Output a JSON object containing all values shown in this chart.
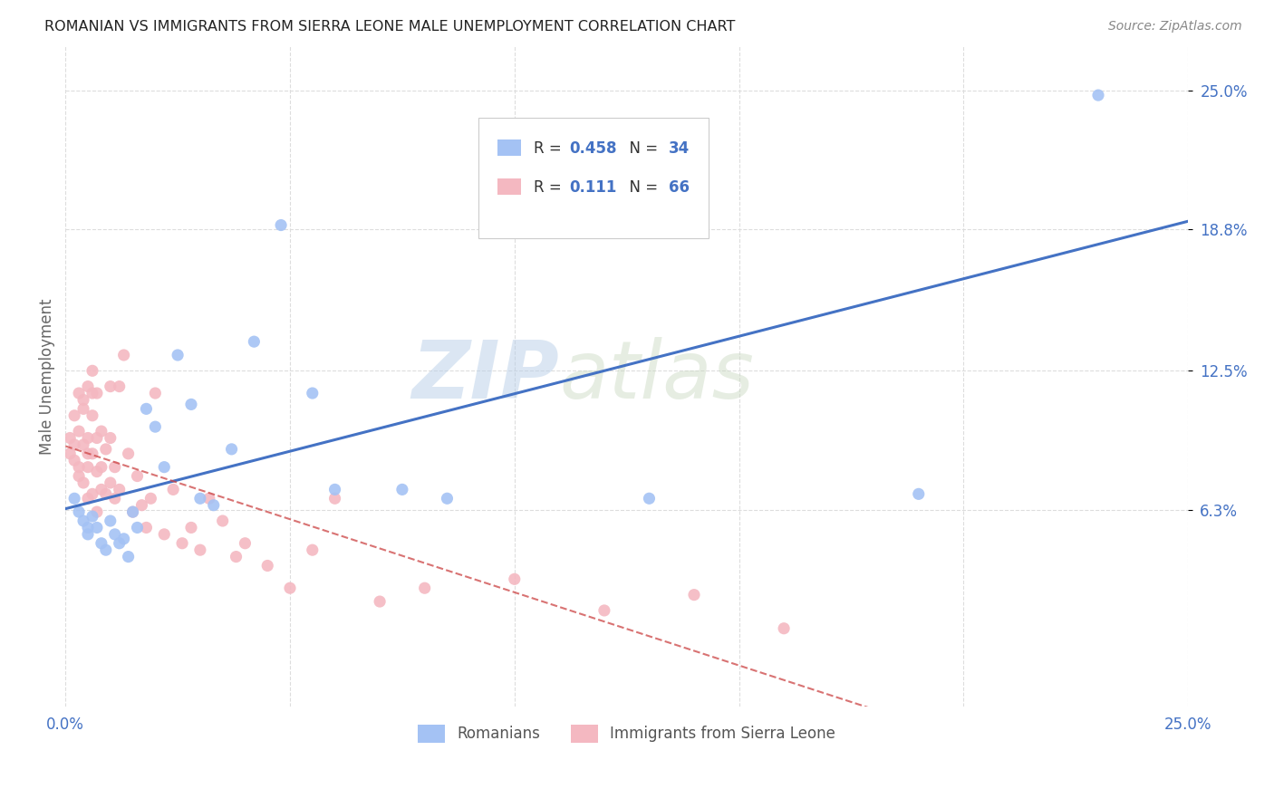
{
  "title": "ROMANIAN VS IMMIGRANTS FROM SIERRA LEONE MALE UNEMPLOYMENT CORRELATION CHART",
  "source": "Source: ZipAtlas.com",
  "ylabel": "Male Unemployment",
  "xlim": [
    0.0,
    0.25
  ],
  "ylim": [
    -0.025,
    0.27
  ],
  "romanian_color": "#a4c2f4",
  "sierra_leone_color": "#f4b8c1",
  "romanian_trend_color": "#4472c4",
  "sierra_leone_trend_color": "#cc4444",
  "watermark_text": "ZIP",
  "watermark_text2": "atlas",
  "legend_r_romanian": "0.458",
  "legend_n_romanian": "34",
  "legend_r_sierra": "0.111",
  "legend_n_sierra": "66",
  "romanians_x": [
    0.002,
    0.003,
    0.004,
    0.005,
    0.005,
    0.006,
    0.007,
    0.008,
    0.009,
    0.01,
    0.011,
    0.012,
    0.013,
    0.014,
    0.015,
    0.016,
    0.018,
    0.02,
    0.022,
    0.025,
    0.028,
    0.03,
    0.033,
    0.037,
    0.042,
    0.048,
    0.055,
    0.06,
    0.075,
    0.085,
    0.1,
    0.13,
    0.19,
    0.23
  ],
  "romanians_y": [
    0.068,
    0.062,
    0.058,
    0.055,
    0.052,
    0.06,
    0.055,
    0.048,
    0.045,
    0.058,
    0.052,
    0.048,
    0.05,
    0.042,
    0.062,
    0.055,
    0.108,
    0.1,
    0.082,
    0.132,
    0.11,
    0.068,
    0.065,
    0.09,
    0.138,
    0.19,
    0.115,
    0.072,
    0.072,
    0.068,
    0.192,
    0.068,
    0.07,
    0.248
  ],
  "sierra_leone_x": [
    0.001,
    0.001,
    0.002,
    0.002,
    0.002,
    0.003,
    0.003,
    0.003,
    0.003,
    0.004,
    0.004,
    0.004,
    0.004,
    0.005,
    0.005,
    0.005,
    0.005,
    0.005,
    0.006,
    0.006,
    0.006,
    0.006,
    0.006,
    0.007,
    0.007,
    0.007,
    0.007,
    0.008,
    0.008,
    0.008,
    0.009,
    0.009,
    0.01,
    0.01,
    0.01,
    0.011,
    0.011,
    0.012,
    0.012,
    0.013,
    0.014,
    0.015,
    0.016,
    0.017,
    0.018,
    0.019,
    0.02,
    0.022,
    0.024,
    0.026,
    0.028,
    0.03,
    0.032,
    0.035,
    0.038,
    0.04,
    0.045,
    0.05,
    0.055,
    0.06,
    0.07,
    0.08,
    0.1,
    0.12,
    0.14,
    0.16
  ],
  "sierra_leone_y": [
    0.095,
    0.088,
    0.105,
    0.085,
    0.092,
    0.082,
    0.098,
    0.115,
    0.078,
    0.092,
    0.108,
    0.075,
    0.112,
    0.068,
    0.088,
    0.095,
    0.118,
    0.082,
    0.07,
    0.088,
    0.105,
    0.115,
    0.125,
    0.062,
    0.08,
    0.095,
    0.115,
    0.072,
    0.082,
    0.098,
    0.07,
    0.09,
    0.075,
    0.095,
    0.118,
    0.068,
    0.082,
    0.072,
    0.118,
    0.132,
    0.088,
    0.062,
    0.078,
    0.065,
    0.055,
    0.068,
    0.115,
    0.052,
    0.072,
    0.048,
    0.055,
    0.045,
    0.068,
    0.058,
    0.042,
    0.048,
    0.038,
    0.028,
    0.045,
    0.068,
    0.022,
    0.028,
    0.032,
    0.018,
    0.025,
    0.01
  ]
}
